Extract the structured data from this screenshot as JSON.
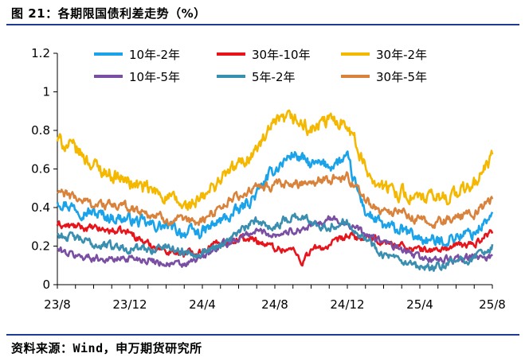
{
  "header": {
    "title": "图 21：各期限国债利差走势（%）"
  },
  "footer": {
    "source": "资料来源：Wind，申万期货研究所"
  },
  "colors": {
    "rule": "#1f3a93",
    "10y_2y": "#1aa3e8",
    "30y_10y": "#e8141c",
    "30y_2y": "#f5b800",
    "10y_5y": "#7a4fa3",
    "5y_2y": "#3a8fb0",
    "30y_5y": "#d9823b"
  },
  "chart_data": {
    "type": "line",
    "title": "",
    "xlabel": "",
    "ylabel": "",
    "ylim": [
      0,
      1.2
    ],
    "y_ticks": [
      "0",
      "0.2",
      "0.4",
      "0.6",
      "0.8",
      "1",
      "1.2"
    ],
    "x_ticks": [
      "23/8",
      "23/12",
      "24/4",
      "24/8",
      "24/12",
      "25/4",
      "25/8"
    ],
    "x_tick_months": [
      0,
      4,
      8,
      12,
      16,
      20,
      24
    ],
    "grid": false,
    "legend_position": "top",
    "series": [
      {
        "key": "10y_2y",
        "name": "10年-2年",
        "color": "#1aa3e8",
        "jitter": 0.025,
        "points": [
          [
            0,
            0.44
          ],
          [
            1,
            0.4
          ],
          [
            2,
            0.37
          ],
          [
            3,
            0.35
          ],
          [
            4,
            0.34
          ],
          [
            5,
            0.31
          ],
          [
            6,
            0.3
          ],
          [
            7,
            0.27
          ],
          [
            8,
            0.27
          ],
          [
            9,
            0.33
          ],
          [
            10,
            0.38
          ],
          [
            11,
            0.47
          ],
          [
            12,
            0.6
          ],
          [
            13,
            0.68
          ],
          [
            14,
            0.62
          ],
          [
            15,
            0.62
          ],
          [
            16,
            0.65
          ],
          [
            16.5,
            0.5
          ],
          [
            17,
            0.38
          ],
          [
            18,
            0.3
          ],
          [
            19,
            0.28
          ],
          [
            20,
            0.24
          ],
          [
            21,
            0.22
          ],
          [
            22,
            0.25
          ],
          [
            23,
            0.27
          ],
          [
            24,
            0.36
          ]
        ]
      },
      {
        "key": "30y_10y",
        "name": "30年-10年",
        "color": "#e8141c",
        "jitter": 0.015,
        "points": [
          [
            0,
            0.31
          ],
          [
            1,
            0.3
          ],
          [
            2,
            0.29
          ],
          [
            3,
            0.28
          ],
          [
            4,
            0.27
          ],
          [
            5,
            0.21
          ],
          [
            6,
            0.18
          ],
          [
            7,
            0.16
          ],
          [
            8,
            0.18
          ],
          [
            9,
            0.22
          ],
          [
            10,
            0.24
          ],
          [
            11,
            0.23
          ],
          [
            12,
            0.19
          ],
          [
            13,
            0.18
          ],
          [
            13.5,
            0.12
          ],
          [
            14,
            0.18
          ],
          [
            15,
            0.2
          ],
          [
            16,
            0.25
          ],
          [
            17,
            0.24
          ],
          [
            18,
            0.22
          ],
          [
            19,
            0.2
          ],
          [
            20,
            0.18
          ],
          [
            21,
            0.18
          ],
          [
            22,
            0.2
          ],
          [
            23,
            0.21
          ],
          [
            24,
            0.28
          ]
        ]
      },
      {
        "key": "30y_2y",
        "name": "30年-2年",
        "color": "#f5b800",
        "jitter": 0.03,
        "points": [
          [
            0,
            0.75
          ],
          [
            1,
            0.7
          ],
          [
            2,
            0.62
          ],
          [
            3,
            0.57
          ],
          [
            4,
            0.53
          ],
          [
            5,
            0.49
          ],
          [
            6,
            0.46
          ],
          [
            7,
            0.4
          ],
          [
            8,
            0.44
          ],
          [
            9,
            0.55
          ],
          [
            10,
            0.62
          ],
          [
            11,
            0.7
          ],
          [
            12,
            0.83
          ],
          [
            13,
            0.86
          ],
          [
            14,
            0.8
          ],
          [
            15,
            0.85
          ],
          [
            16,
            0.85
          ],
          [
            16.5,
            0.72
          ],
          [
            17,
            0.6
          ],
          [
            18,
            0.5
          ],
          [
            19,
            0.48
          ],
          [
            20,
            0.44
          ],
          [
            21,
            0.45
          ],
          [
            22,
            0.47
          ],
          [
            23,
            0.52
          ],
          [
            24,
            0.66
          ]
        ]
      },
      {
        "key": "10y_5y",
        "name": "10年-5年",
        "color": "#7a4fa3",
        "jitter": 0.015,
        "points": [
          [
            0,
            0.18
          ],
          [
            1,
            0.15
          ],
          [
            2,
            0.14
          ],
          [
            3,
            0.13
          ],
          [
            4,
            0.14
          ],
          [
            5,
            0.13
          ],
          [
            6,
            0.11
          ],
          [
            7,
            0.1
          ],
          [
            8,
            0.14
          ],
          [
            9,
            0.2
          ],
          [
            10,
            0.24
          ],
          [
            11,
            0.28
          ],
          [
            12,
            0.26
          ],
          [
            13,
            0.28
          ],
          [
            14,
            0.3
          ],
          [
            15,
            0.34
          ],
          [
            16,
            0.32
          ],
          [
            17,
            0.26
          ],
          [
            18,
            0.22
          ],
          [
            19,
            0.18
          ],
          [
            20,
            0.14
          ],
          [
            21,
            0.13
          ],
          [
            22,
            0.13
          ],
          [
            23,
            0.14
          ],
          [
            24,
            0.15
          ]
        ]
      },
      {
        "key": "5y_2y",
        "name": "5年-2年",
        "color": "#3a8fb0",
        "jitter": 0.018,
        "points": [
          [
            0,
            0.26
          ],
          [
            1,
            0.24
          ],
          [
            2,
            0.21
          ],
          [
            3,
            0.2
          ],
          [
            4,
            0.19
          ],
          [
            5,
            0.18
          ],
          [
            6,
            0.2
          ],
          [
            7,
            0.17
          ],
          [
            8,
            0.17
          ],
          [
            9,
            0.21
          ],
          [
            10,
            0.27
          ],
          [
            11,
            0.33
          ],
          [
            12,
            0.3
          ],
          [
            13,
            0.36
          ],
          [
            14,
            0.33
          ],
          [
            15,
            0.3
          ],
          [
            16,
            0.33
          ],
          [
            17,
            0.24
          ],
          [
            18,
            0.16
          ],
          [
            19,
            0.11
          ],
          [
            20,
            0.08
          ],
          [
            21,
            0.09
          ],
          [
            22,
            0.12
          ],
          [
            23,
            0.14
          ],
          [
            24,
            0.2
          ]
        ]
      },
      {
        "key": "30y_5y",
        "name": "30年-5年",
        "color": "#d9823b",
        "jitter": 0.02,
        "points": [
          [
            0,
            0.48
          ],
          [
            1,
            0.45
          ],
          [
            2,
            0.42
          ],
          [
            3,
            0.41
          ],
          [
            4,
            0.4
          ],
          [
            5,
            0.37
          ],
          [
            6,
            0.34
          ],
          [
            7,
            0.32
          ],
          [
            8,
            0.33
          ],
          [
            9,
            0.41
          ],
          [
            10,
            0.46
          ],
          [
            11,
            0.5
          ],
          [
            12,
            0.51
          ],
          [
            13,
            0.52
          ],
          [
            14,
            0.54
          ],
          [
            15,
            0.55
          ],
          [
            16,
            0.56
          ],
          [
            16.5,
            0.5
          ],
          [
            17,
            0.44
          ],
          [
            18,
            0.38
          ],
          [
            19,
            0.37
          ],
          [
            20,
            0.33
          ],
          [
            21,
            0.32
          ],
          [
            22,
            0.35
          ],
          [
            23,
            0.37
          ],
          [
            24,
            0.44
          ]
        ]
      }
    ]
  }
}
